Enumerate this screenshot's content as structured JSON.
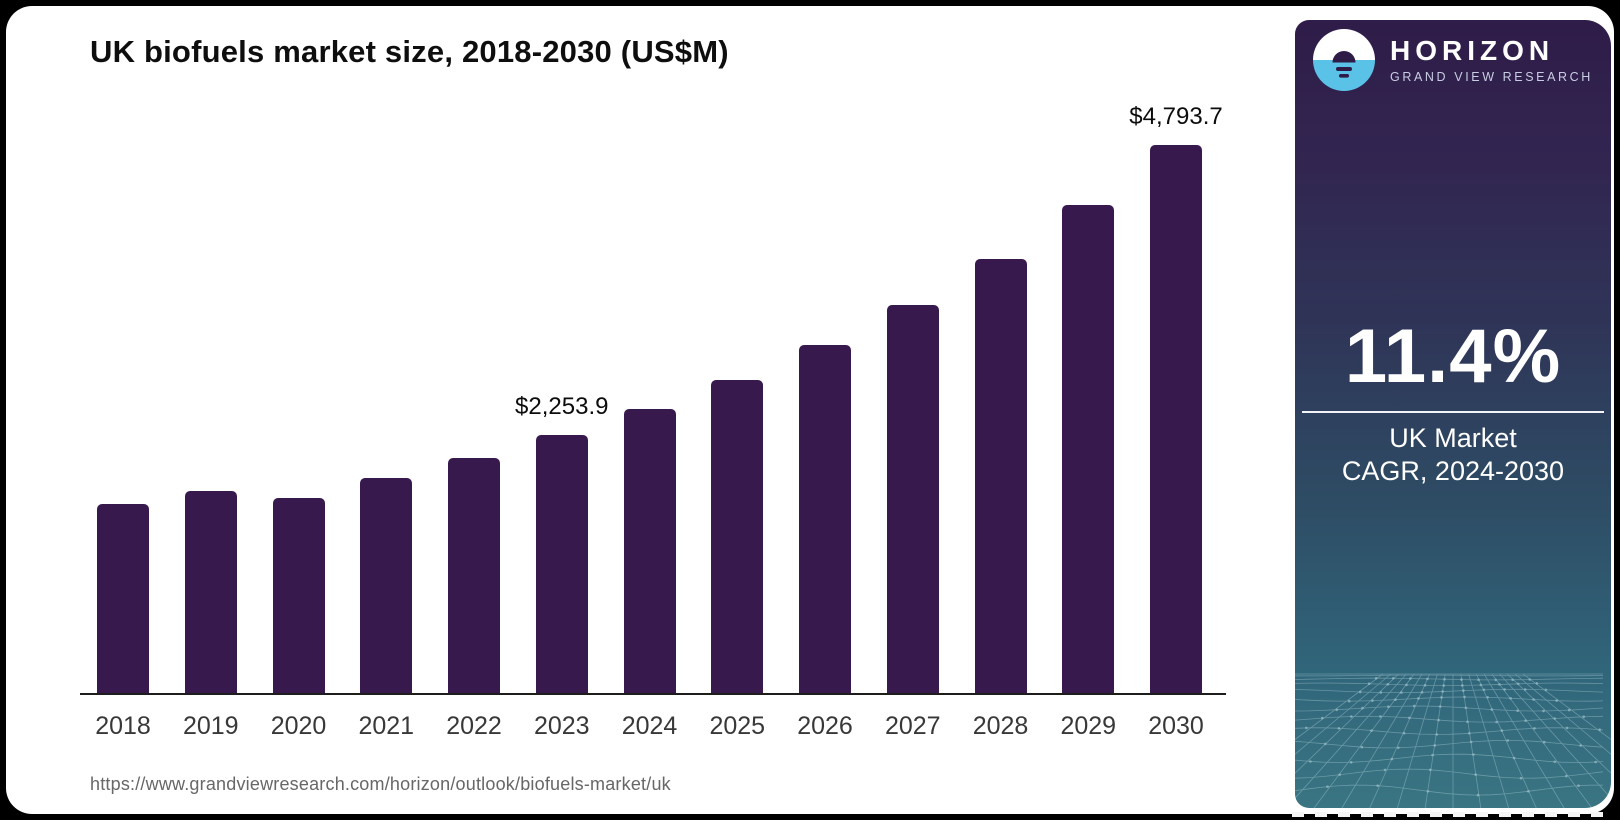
{
  "chart": {
    "title": "UK biofuels market size, 2018-2030 (US$M)"
  },
  "footer": {
    "source_url": "https://www.grandviewresearch.com/horizon/outlook/biofuels-market/uk"
  },
  "sidebar": {
    "brand": {
      "name": "HORIZON",
      "tagline": "GRAND VIEW RESEARCH",
      "logo_icon": "horizon-sunrise-icon"
    },
    "stat": {
      "value": "11.4%",
      "label_line1": "UK Market",
      "label_line2": "CAGR, 2024-2030"
    }
  },
  "colors": {
    "bar": "#38194E",
    "sidebar_gradient_top": "#2F1C48",
    "sidebar_gradient_bottom": "#3A7583",
    "logo_blue": "#5BC2E7",
    "logo_dark": "#2E1B46",
    "axis": "#1D1D1D",
    "title_text": "#0E0E0E",
    "x_label_text": "#383838",
    "url_text": "#676767",
    "wireframe_line": "#9CC2CC"
  },
  "chart_data": {
    "type": "bar",
    "title": "UK biofuels market size, 2018-2030 (US$M)",
    "unit": "US$M",
    "categories": [
      "2018",
      "2019",
      "2020",
      "2021",
      "2022",
      "2023",
      "2024",
      "2025",
      "2026",
      "2027",
      "2028",
      "2029",
      "2030"
    ],
    "values": [
      1650,
      1765,
      1710,
      1880,
      2055,
      2253.9,
      2485,
      2740,
      3045,
      3395,
      3800,
      4265,
      4793.7
    ],
    "value_labels": {
      "2023": "$2,253.9",
      "2030": "$4,793.7"
    },
    "xlabel": "",
    "ylabel": "",
    "ylim": [
      0,
      4793.7
    ],
    "grid": false,
    "legend": false,
    "bar_color": "#38194E"
  }
}
